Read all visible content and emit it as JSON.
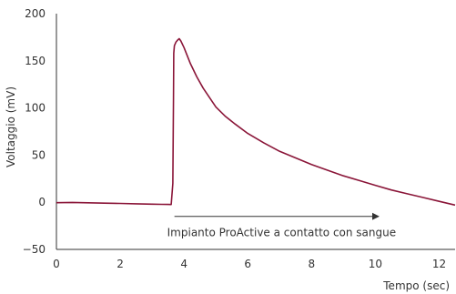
{
  "chart_data": {
    "type": "line",
    "xlabel": "Tempo (sec)",
    "ylabel": "Voltaggio (mV)",
    "xlim": [
      0,
      12.5
    ],
    "ylim": [
      -50,
      200
    ],
    "x_ticks": [
      0,
      2,
      4,
      6,
      8,
      10,
      12
    ],
    "y_ticks": [
      -50,
      0,
      50,
      100,
      150,
      200
    ],
    "x_tick_labels": [
      "0",
      "2",
      "4",
      "6",
      "8",
      "10",
      "12"
    ],
    "y_tick_labels": [
      "−50",
      "0",
      "50",
      "100",
      "150",
      "200"
    ],
    "grid": false,
    "legend": "none",
    "series": [
      {
        "color": "#8a1538",
        "x": [
          0,
          0.5,
          1,
          1.5,
          2,
          2.5,
          3,
          3.3,
          3.5,
          3.6,
          3.65,
          3.67,
          3.68,
          3.7,
          3.75,
          3.8,
          3.85,
          3.9,
          4.0,
          4.2,
          4.4,
          4.6,
          4.8,
          5.0,
          5.3,
          5.6,
          6.0,
          6.5,
          7.0,
          7.5,
          8.0,
          8.5,
          9.0,
          9.5,
          10.0,
          10.5,
          11.0,
          11.5,
          12.0,
          12.5
        ],
        "y": [
          -0.5,
          -0.2,
          -0.6,
          -1.0,
          -1.3,
          -1.6,
          -2.0,
          -2.2,
          -2.3,
          -2.4,
          20,
          110,
          158,
          166,
          170,
          172,
          173.5,
          171,
          164,
          147,
          133,
          121,
          111,
          101,
          91,
          83,
          73,
          63,
          54,
          47,
          40,
          34,
          28,
          23,
          18,
          13,
          9,
          5,
          1,
          -3
        ]
      }
    ],
    "annotations": [
      {
        "text": "Impianto ProActive a contatto con sangue",
        "arrow_from": [
          3.7,
          -15
        ],
        "arrow_to": [
          10.1,
          -15
        ]
      }
    ]
  }
}
